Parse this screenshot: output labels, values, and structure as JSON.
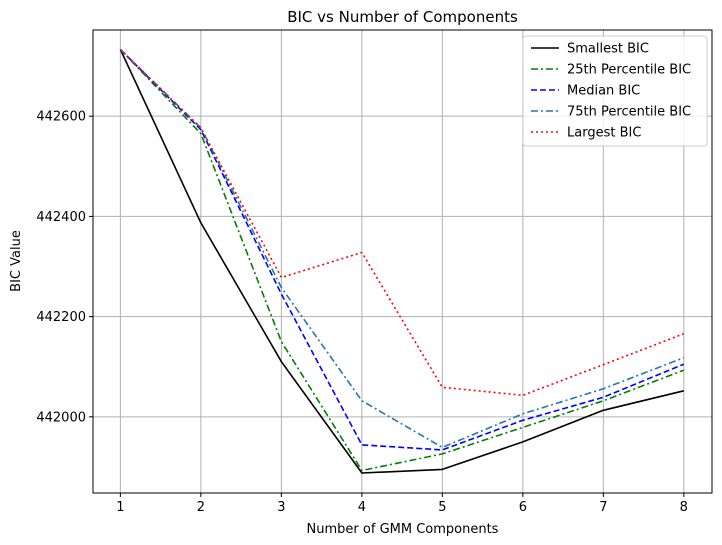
{
  "chart_data": {
    "type": "line",
    "title": "BIC vs Number of Components",
    "xlabel": "Number of GMM Components",
    "ylabel": "BIC Value",
    "x": [
      1,
      2,
      3,
      4,
      5,
      6,
      7,
      8
    ],
    "xlim": [
      0.66,
      8.35
    ],
    "ylim": [
      441848,
      442772
    ],
    "xticks": [
      1,
      2,
      3,
      4,
      5,
      6,
      7,
      8
    ],
    "yticks": [
      442000,
      442200,
      442400,
      442600
    ],
    "grid": true,
    "legend_position": "top-right",
    "series": [
      {
        "name": "Smallest BIC",
        "color": "#000000",
        "dash": "solid",
        "values": [
          442733,
          442387,
          442110,
          441888,
          441895,
          441950,
          442013,
          442052
        ]
      },
      {
        "name": "25th Percentile BIC",
        "color": "#008000",
        "dash": "dashdot",
        "values": [
          442733,
          442565,
          442150,
          441893,
          441926,
          441979,
          442032,
          442093
        ]
      },
      {
        "name": "Median BIC",
        "color": "#0000ff",
        "dash": "dashed",
        "values": [
          442733,
          442573,
          442245,
          441944,
          441934,
          441993,
          442039,
          442105
        ]
      },
      {
        "name": "75th Percentile BIC",
        "color": "#1f77b4",
        "dash": "dashdot",
        "values": [
          442733,
          442577,
          442258,
          442032,
          441939,
          442006,
          442056,
          442118
        ]
      },
      {
        "name": "Largest BIC",
        "color": "#ff0000",
        "dash": "dotted",
        "values": [
          442733,
          442576,
          442278,
          442328,
          442059,
          442043,
          442104,
          442166
        ]
      }
    ]
  }
}
